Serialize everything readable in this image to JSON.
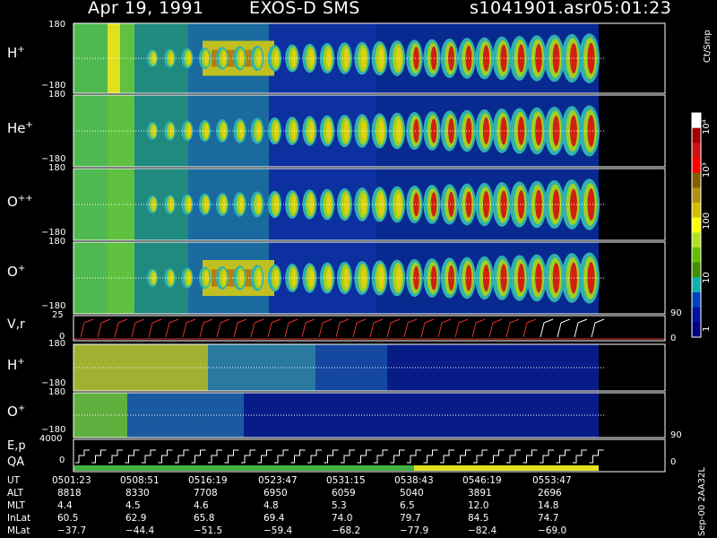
{
  "header": {
    "date": "Apr 19, 1991",
    "instrument": "EXOS-D SMS",
    "file": "s1041901.asr",
    "time": "05:01:23"
  },
  "panels": [
    {
      "species": "H",
      "charge": "+",
      "ymax": "180",
      "ymin": "−180"
    },
    {
      "species": "He",
      "charge": "+",
      "ymax": "180",
      "ymin": "−180"
    },
    {
      "species": "O",
      "charge": "++",
      "ymax": "180",
      "ymin": "−180"
    },
    {
      "species": "O",
      "charge": "+",
      "ymax": "180",
      "ymin": "−180"
    }
  ],
  "vr_panel": {
    "label": "V,r",
    "ymax": "25",
    "ymin": "0",
    "right_top": "90",
    "right_bottom": "0"
  },
  "low_panels": [
    {
      "species": "H",
      "charge": "+",
      "ymax": "180",
      "ymin": "−180"
    },
    {
      "species": "O",
      "charge": "+",
      "ymax": "180",
      "ymin": "−180"
    }
  ],
  "ep_panel": {
    "label1": "E,p",
    "label2": "QA",
    "ymax": "4000",
    "ymin": "0",
    "right_top": "90",
    "right_bottom": "0"
  },
  "colorbar": {
    "unit": "Ct/Smp",
    "ticks": [
      {
        "label": "10⁴",
        "value": 10000
      },
      {
        "label": "10³",
        "value": 1000
      },
      {
        "label": "100",
        "value": 100
      },
      {
        "label": "10",
        "value": 10
      },
      {
        "label": "1",
        "value": 1
      }
    ],
    "colors": [
      "#ffffff",
      "#a00000",
      "#d01010",
      "#ff0000",
      "#806000",
      "#b09010",
      "#d0c000",
      "#ffff00",
      "#b0e020",
      "#60c000",
      "#409000",
      "#10b0b0",
      "#0040c0",
      "#0010a0",
      "#000080"
    ]
  },
  "footer": {
    "rows": [
      {
        "label": "UT",
        "values": [
          "0501:23",
          "0508:51",
          "0516:19",
          "0523:47",
          "0531:15",
          "0538:43",
          "0546:19",
          "0553:47"
        ]
      },
      {
        "label": "ALT",
        "values": [
          "8818",
          "8330",
          "7708",
          "6950",
          "6059",
          "5040",
          "3891",
          "2696"
        ]
      },
      {
        "label": "MLT",
        "values": [
          "4.4",
          "4.5",
          "4.6",
          "4.8",
          "5.3",
          "6.5",
          "12.0",
          "14.8"
        ]
      },
      {
        "label": "InLat",
        "values": [
          "60.5",
          "62.9",
          "65.8",
          "69.4",
          "74.0",
          "79.7",
          "84.5",
          "74.7"
        ]
      },
      {
        "label": "MLat",
        "values": [
          "−37.7",
          "−44.4",
          "−51.5",
          "−59.4",
          "−68.2",
          "−77.9",
          "−82.4",
          "−69.0"
        ]
      }
    ],
    "stamp": "Sep-00  2AA32L"
  },
  "chart_data": {
    "type": "heatmap",
    "title": "Apr 19, 1991    EXOS-D SMS",
    "x_label": "UT",
    "x_ticks": [
      "0501:23",
      "0508:51",
      "0516:19",
      "0523:47",
      "0531:15",
      "0538:43",
      "0546:19",
      "0553:47"
    ],
    "y_range": [
      -180,
      180
    ],
    "series": [
      {
        "name": "H+"
      },
      {
        "name": "He+"
      },
      {
        "name": "O++"
      },
      {
        "name": "O+"
      }
    ],
    "colorbar_unit": "Ct/Smp",
    "colorbar_range": [
      1,
      10000
    ],
    "colorbar_scale": "log"
  }
}
